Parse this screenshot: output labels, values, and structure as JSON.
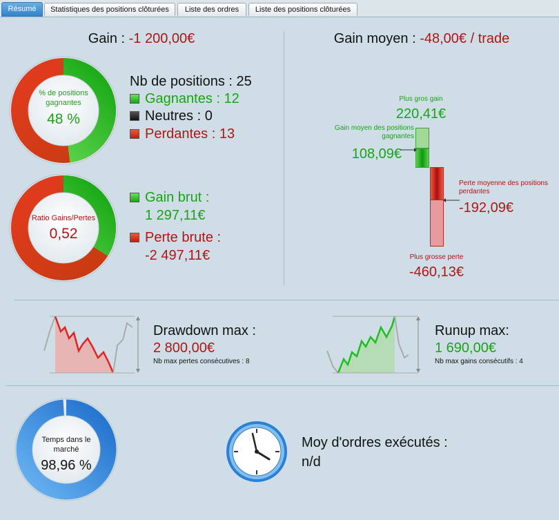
{
  "tabs": [
    {
      "label": "Résumé"
    },
    {
      "label": "Statistiques des positions clôturées"
    },
    {
      "label": "Liste des ordres"
    },
    {
      "label": "Liste des positions clôturées"
    }
  ],
  "colors": {
    "gain": "#19a315",
    "loss": "#b01515",
    "accent": "#2f80c9"
  },
  "gain": {
    "label": "Gain :",
    "value": "-1 200,00€"
  },
  "win_ring": {
    "caption": "% de positions gagnantes",
    "value": "48 %",
    "fraction": 0.48
  },
  "positions": {
    "total_label": "Nb de positions : 25",
    "winning_label": "Gagnantes : 12",
    "neutral_label": "Neutres : 0",
    "losing_label": "Perdantes : 13"
  },
  "ratio_ring": {
    "caption": "Ratio Gains/Pertes",
    "value": "0,52",
    "fraction": 0.34
  },
  "gross": {
    "gain_label": "Gain brut :",
    "gain_value": "1 297,11€",
    "loss_label": "Perte brute :",
    "loss_value": "-2 497,11€"
  },
  "avg_gain": {
    "label": "Gain moyen :",
    "value": "-48,00€ / trade"
  },
  "trade_chart": {
    "max_gain_label": "Plus gros gain",
    "max_gain_value": "220,41€",
    "avg_win_label": "Gain moyen des positions gagnantes",
    "avg_win_value": "108,09€",
    "avg_loss_label": "Perte moyenne des positions perdantes",
    "avg_loss_value": "-192,09€",
    "max_loss_label": "Plus grosse perte",
    "max_loss_value": "-460,13€"
  },
  "drawdown": {
    "label": "Drawdown max :",
    "value": "2 800,00€",
    "sub": "Nb max pertes consécutives : 8"
  },
  "runup": {
    "label": "Runup max:",
    "value": "1 690,00€",
    "sub": "Nb max gains consécutifs : 4"
  },
  "market_time": {
    "caption": "Temps dans le marché",
    "value": "98,96 %",
    "fraction": 0.9896
  },
  "orders": {
    "label": "Moy d'ordres exécutés :",
    "value": "n/d"
  },
  "icons": {
    "clock": "clock-icon",
    "drawdown_chart": "drawdown-chart-icon",
    "runup_chart": "runup-chart-icon"
  }
}
